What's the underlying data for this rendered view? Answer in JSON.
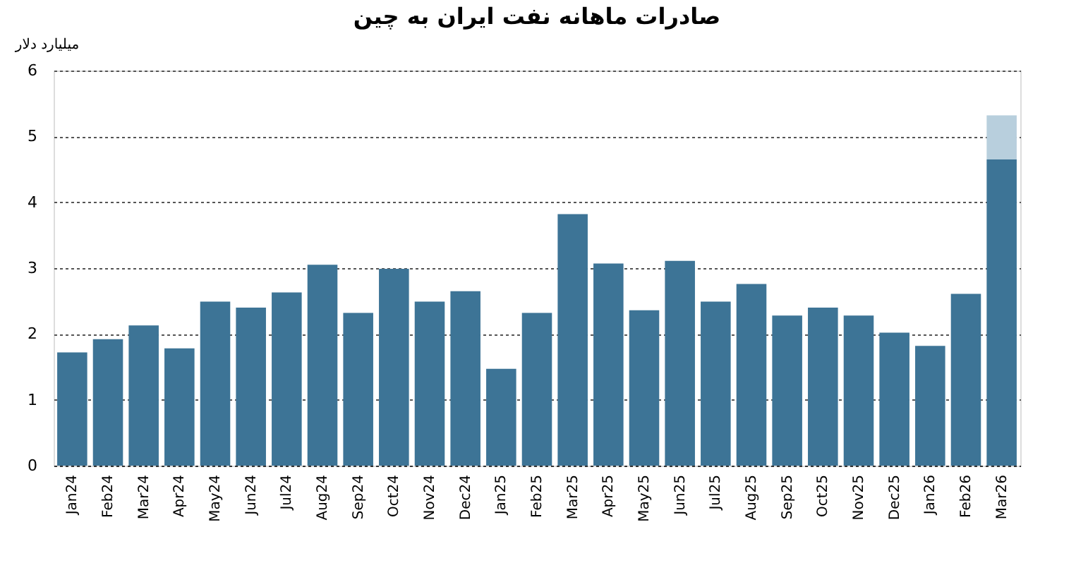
{
  "chart_data": {
    "type": "bar",
    "title": "صادرات ماهانه نفت ایران به چین",
    "ylabel": "میلیارد دلار",
    "categories": [
      "Jan24",
      "Feb24",
      "Mar24",
      "Apr24",
      "May24",
      "Jun24",
      "Jul24",
      "Aug24",
      "Sep24",
      "Oct24",
      "Nov24",
      "Dec24",
      "Jan25",
      "Feb25",
      "Mar25",
      "Apr25",
      "May25",
      "Jun25",
      "Jul25",
      "Aug25",
      "Sep25",
      "Oct25",
      "Nov25",
      "Dec25",
      "Jan26",
      "Feb26",
      "Mar26"
    ],
    "stacked": true,
    "series": [
      {
        "color": "#3d7496",
        "values": [
          1.72,
          1.92,
          2.13,
          1.78,
          2.49,
          2.4,
          2.63,
          3.05,
          2.32,
          2.99,
          2.49,
          2.65,
          1.47,
          2.32,
          3.82,
          3.07,
          2.36,
          3.11,
          2.49,
          2.76,
          2.28,
          2.4,
          2.28,
          2.02,
          1.82,
          2.61,
          4.65
        ]
      },
      {
        "color": "#b8cfdd",
        "values": [
          null,
          null,
          null,
          null,
          null,
          null,
          null,
          null,
          null,
          null,
          null,
          null,
          null,
          null,
          null,
          null,
          null,
          null,
          null,
          null,
          null,
          null,
          null,
          null,
          null,
          null,
          0.67
        ]
      }
    ],
    "ylim": [
      0,
      6
    ],
    "yticks": [
      0,
      1,
      2,
      3,
      4,
      5,
      6
    ],
    "grid": "y"
  }
}
